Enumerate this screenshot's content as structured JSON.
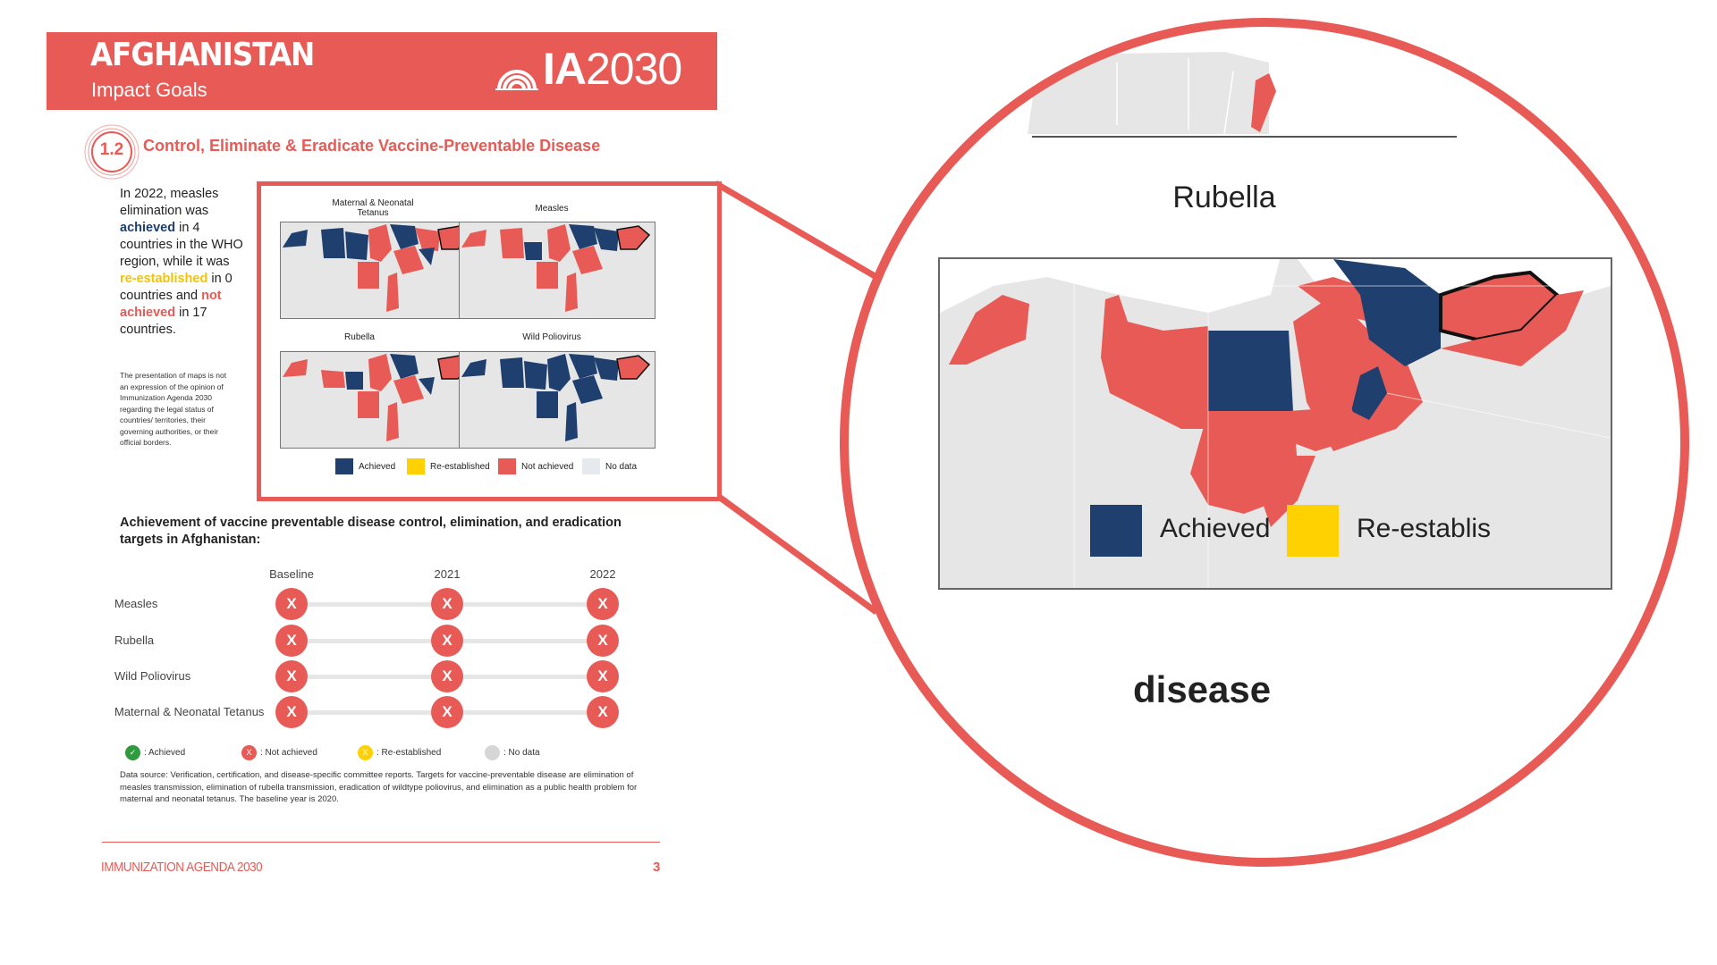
{
  "header": {
    "country": "AFGHANISTAN",
    "subtitle": "Impact Goals",
    "logo_bold": "IA",
    "logo_year": "2030"
  },
  "section": {
    "number": "1.2",
    "title": "Control, Eliminate & Eradicate Vaccine-Preventable Disease"
  },
  "narrative": {
    "p1": "In 2022, measles elimination was",
    "achieved": "achieved",
    "p2": " in 4 countries in the WHO region, while it was ",
    "reestablished": "re-established",
    "p3": " in 0 countries and ",
    "not_achieved": "not achieved",
    "p4": " in 17 countries.",
    "disclaimer": "The presentation of maps is not an expression of the opinion of Immunization Agenda 2030 regarding the legal status of countries/ territories, their governing authorities, or their official borders."
  },
  "maps": {
    "titles": [
      "Maternal & Neonatal Tetanus",
      "Measles",
      "Rubella",
      "Wild Poliovirus"
    ],
    "legend": [
      "Achieved",
      "Re-established",
      "Not achieved",
      "No data"
    ]
  },
  "zoom": {
    "title": "Rubella",
    "legend_achieved": "Achieved",
    "legend_reestablished": "Re-establis",
    "cut_text": "disease"
  },
  "colors": {
    "achieved": "#1f3f6e",
    "reestablished": "#ffd100",
    "not_achieved": "#e85a55",
    "no_data": "#e6e6e6",
    "accent": "#e85a55",
    "achieved_dot": "#2f9b3e"
  },
  "achievement": {
    "title": "Achievement of vaccine preventable disease control, elimination, and eradication targets in Afghanistan:",
    "columns": [
      "Baseline",
      "2021",
      "2022"
    ],
    "rows": [
      {
        "label": "Measles",
        "status": [
          "X",
          "X",
          "X"
        ]
      },
      {
        "label": "Rubella",
        "status": [
          "X",
          "X",
          "X"
        ]
      },
      {
        "label": "Wild Poliovirus",
        "status": [
          "X",
          "X",
          "X"
        ]
      },
      {
        "label": "Maternal & Neonatal Tetanus",
        "status": [
          "X",
          "X",
          "X"
        ]
      }
    ],
    "key": [
      {
        "symbol": "✓",
        "label": ": Achieved"
      },
      {
        "symbol": "X",
        "label": ": Not achieved"
      },
      {
        "symbol": "X",
        "label": ": Re-established"
      },
      {
        "symbol": "",
        "label": ": No data"
      }
    ],
    "datasource": "Data source: Verification, certification, and disease-specific committee reports. Targets for vaccine-preventable disease are elimination of measles transmission, elimination of rubella transmission, eradication of wildtype poliovirus, and elimination as a public health problem for maternal and neonatal tetanus. The baseline year is 2020."
  },
  "footer": {
    "left": "IMMUNIZATION AGENDA 2030",
    "page": "3"
  }
}
